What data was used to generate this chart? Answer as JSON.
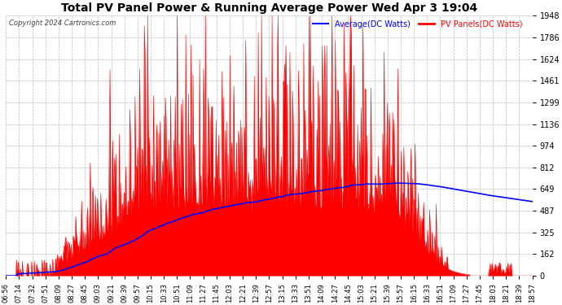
{
  "title": "Total PV Panel Power & Running Average Power Wed Apr 3 19:04",
  "copyright": "Copyright 2024 Cartronics.com",
  "legend_avg": "Average(DC Watts)",
  "legend_pv": "PV Panels(DC Watts)",
  "yticks": [
    0.0,
    162.4,
    324.7,
    487.1,
    649.4,
    811.8,
    974.1,
    1136.5,
    1298.8,
    1461.2,
    1623.5,
    1785.9,
    1948.3
  ],
  "ymax": 1948.3,
  "ymin": 0.0,
  "background_color": "#ffffff",
  "grid_color": "#aaaaaa",
  "pv_color": "#ff0000",
  "avg_color": "#0000ff",
  "title_color": "#000000",
  "copyright_color": "#000000",
  "xtick_labels": [
    "06:56",
    "07:14",
    "07:32",
    "07:51",
    "08:09",
    "08:27",
    "08:45",
    "09:03",
    "09:21",
    "09:39",
    "09:57",
    "10:15",
    "10:33",
    "10:51",
    "11:09",
    "11:27",
    "11:45",
    "12:03",
    "12:21",
    "12:39",
    "12:57",
    "13:15",
    "13:33",
    "13:51",
    "14:09",
    "14:27",
    "14:45",
    "15:03",
    "15:21",
    "15:39",
    "15:57",
    "16:15",
    "16:33",
    "16:51",
    "17:09",
    "17:27",
    "17:45",
    "18:03",
    "18:21",
    "18:39",
    "18:57"
  ],
  "figwidth": 6.9,
  "figheight": 3.75,
  "dpi": 100
}
